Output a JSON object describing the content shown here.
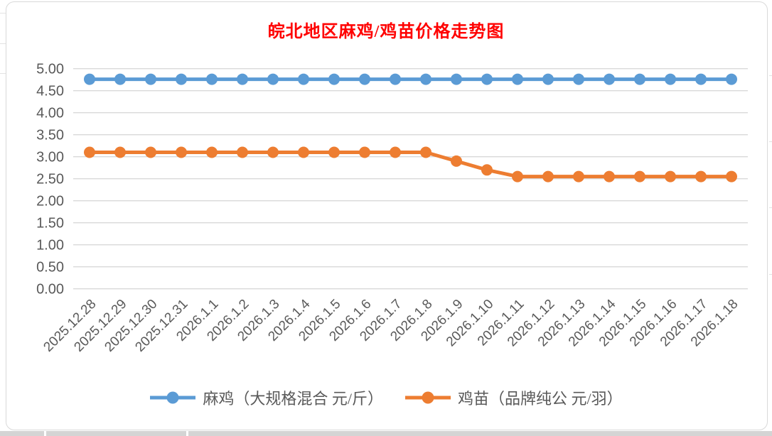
{
  "chart_data": {
    "type": "line",
    "title": "皖北地区麻鸡/鸡苗价格走势图",
    "categories": [
      "2025.12.28",
      "2025.12.29",
      "2025.12.30",
      "2025.12.31",
      "2026.1.1",
      "2026.1.2",
      "2026.1.3",
      "2026.1.4",
      "2026.1.5",
      "2026.1.6",
      "2026.1.7",
      "2026.1.8",
      "2026.1.9",
      "2026.1.10",
      "2026.1.11",
      "2026.1.12",
      "2026.1.13",
      "2026.1.14",
      "2026.1.15",
      "2026.1.16",
      "2026.1.17",
      "2026.1.18"
    ],
    "series": [
      {
        "name": "麻鸡（大规格混合 元/斤）",
        "color": "#5B9BD5",
        "values": [
          4.76,
          4.76,
          4.76,
          4.76,
          4.76,
          4.76,
          4.76,
          4.76,
          4.76,
          4.76,
          4.76,
          4.76,
          4.76,
          4.76,
          4.76,
          4.76,
          4.76,
          4.76,
          4.76,
          4.76,
          4.76,
          4.76
        ]
      },
      {
        "name": "鸡苗（品牌纯公 元/羽）",
        "color": "#ED7D31",
        "values": [
          3.1,
          3.1,
          3.1,
          3.1,
          3.1,
          3.1,
          3.1,
          3.1,
          3.1,
          3.1,
          3.1,
          3.1,
          2.9,
          2.7,
          2.55,
          2.55,
          2.55,
          2.55,
          2.55,
          2.55,
          2.55,
          2.55
        ]
      }
    ],
    "ylim": [
      0,
      5
    ],
    "ytick_step": 0.5,
    "ytick_labels": [
      "0.00",
      "0.50",
      "1.00",
      "1.50",
      "2.00",
      "2.50",
      "3.00",
      "3.50",
      "4.00",
      "4.50",
      "5.00"
    ],
    "xlabel": "",
    "ylabel": "",
    "grid": true,
    "legend_position": "bottom",
    "x_label_rotation_deg": 45
  },
  "colors": {
    "title": "#FF0000",
    "axis_text": "#595959",
    "gridline": "#D9D9D9",
    "frame_border": "#D9D9D9"
  }
}
